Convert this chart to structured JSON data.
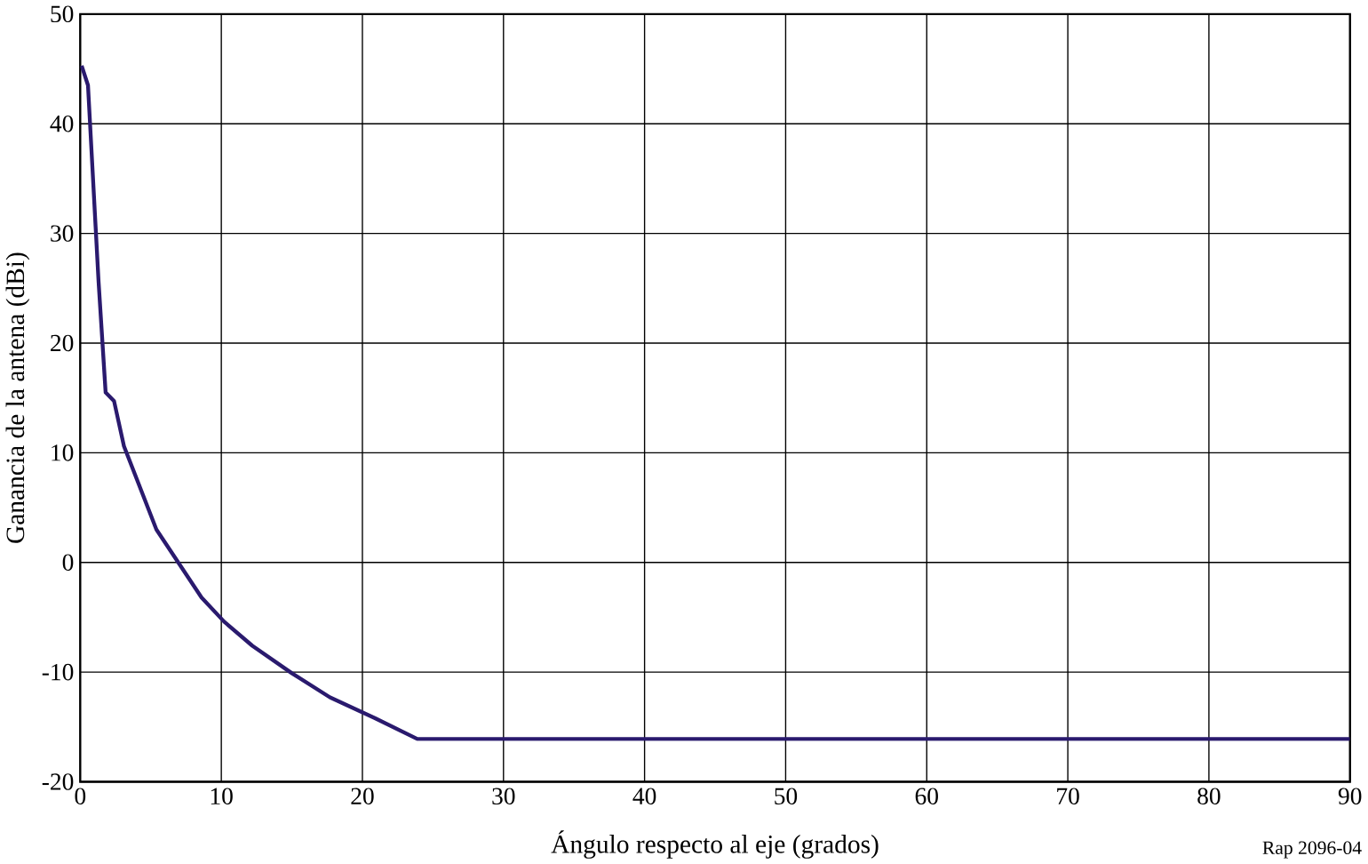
{
  "chart_data": {
    "type": "line",
    "xlabel": "Ángulo respecto al eje (grados)",
    "ylabel": "Ganancia de la antena (dBi)",
    "annotations": [
      "Rap 2096-04"
    ],
    "x": [
      0.1,
      0.55,
      1.3,
      1.8,
      2.4,
      3.1,
      5.4,
      8.6,
      10.2,
      12.2,
      15,
      17.7,
      20.9,
      23.9,
      90
    ],
    "series": [
      {
        "color": "#2a1a6e",
        "values": [
          45.3,
          43.5,
          25.6,
          15.5,
          14.7,
          10.6,
          3.0,
          -3.2,
          -5.4,
          -7.6,
          -10.1,
          -12.3,
          -14.2,
          -16.1,
          -16.1
        ]
      }
    ],
    "xlim": [
      0,
      90
    ],
    "ylim": [
      -20,
      50
    ],
    "xticks": [
      0,
      10,
      20,
      30,
      40,
      50,
      60,
      70,
      80,
      90
    ],
    "yticks": [
      -20,
      -10,
      0,
      10,
      20,
      30,
      40,
      50
    ],
    "grid": true,
    "marker": "none",
    "line_style": "solid"
  }
}
